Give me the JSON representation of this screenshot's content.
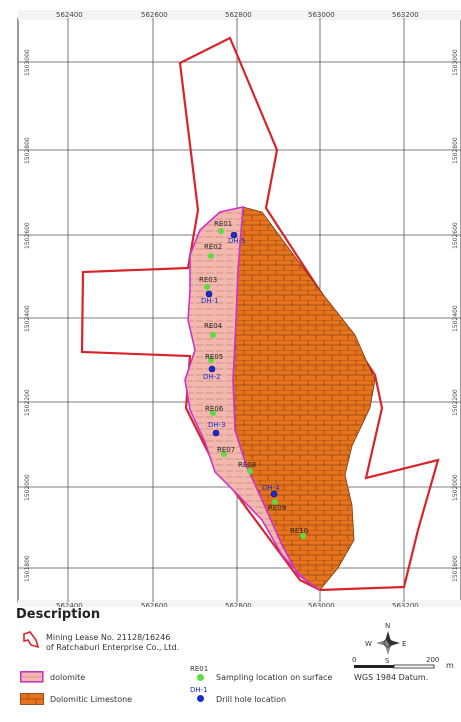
{
  "map": {
    "grid_x_labels": [
      "562400",
      "562600",
      "562800",
      "563000",
      "563200"
    ],
    "grid_y_labels": [
      "1503000",
      "1502800",
      "1502600",
      "1502400",
      "1502200",
      "1502000",
      "1501800"
    ],
    "sampling_points": [
      "RE01",
      "RE02",
      "RE03",
      "RE04",
      "RE05",
      "RE06",
      "RE07",
      "RE08",
      "RE09",
      "RE10"
    ],
    "drill_holes": [
      "DH-5",
      "DH-1",
      "DH-2",
      "DH-3",
      "DH-4"
    ]
  },
  "legend": {
    "title": "Description",
    "lease_line1": "Mining Lease No. 21128/16246",
    "lease_line2": "of Ratchaburi Enterprise Co., Ltd.",
    "dolomite": "dolomite",
    "limestone": "Dolomitic Limestone",
    "re_label": "RE01",
    "re_desc": "Sampling location on surface",
    "dh_label": "DH-1",
    "dh_desc": "Drill hole location",
    "scale_0": "0",
    "scale_200": "200",
    "scale_unit": "m",
    "datum": "WGS 1984 Datum.",
    "north": "N",
    "south": "S",
    "east": "E",
    "west": "W"
  },
  "colors": {
    "lease_border": "#d8242b",
    "limestone_fill": "#e8731d",
    "dolomite_fill": "#f2b8ad",
    "dolomite_border": "#cc33cc",
    "sample_dot": "#5cdc3c",
    "drill_dot": "#1a2bd0",
    "grid": "#555555"
  }
}
